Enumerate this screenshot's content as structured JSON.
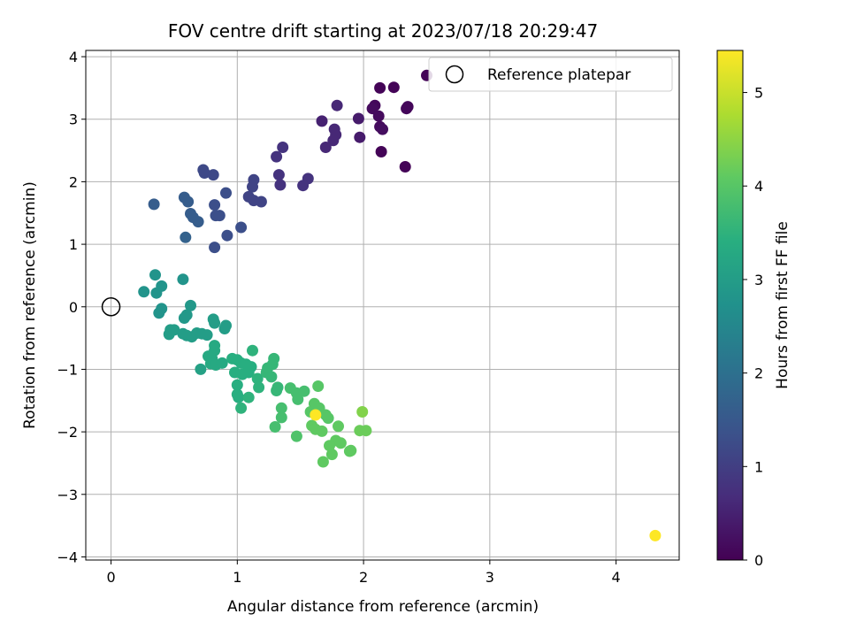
{
  "chart_data": {
    "type": "scatter",
    "title": "FOV centre drift starting at 2023/07/18 20:29:47",
    "xlabel": "Angular distance from reference (arcmin)",
    "ylabel": "Rotation from reference (arcmin)",
    "xlim": [
      -0.2,
      4.5
    ],
    "ylim": [
      -4.05,
      4.1
    ],
    "xticks": [
      0,
      1,
      2,
      3,
      4
    ],
    "yticks": [
      -4,
      -3,
      -2,
      -1,
      0,
      1,
      2,
      3,
      4
    ],
    "grid": true,
    "legend": {
      "position": "top-right",
      "label": "Reference platepar"
    },
    "reference_point": {
      "x": 0,
      "y": 0
    },
    "colormap": "viridis",
    "colorbar": {
      "label": "Hours from first FF file",
      "range": [
        0,
        5.45
      ],
      "ticks": [
        0,
        1,
        2,
        3,
        4,
        5
      ]
    },
    "points": [
      {
        "x": 2.5,
        "y": 3.7,
        "c": 0.05
      },
      {
        "x": 2.13,
        "y": 3.5,
        "c": 0.05
      },
      {
        "x": 2.24,
        "y": 3.51,
        "c": 0.05
      },
      {
        "x": 2.35,
        "y": 3.2,
        "c": 0.1
      },
      {
        "x": 2.34,
        "y": 3.17,
        "c": 0.1
      },
      {
        "x": 2.09,
        "y": 3.22,
        "c": 0.1
      },
      {
        "x": 2.07,
        "y": 3.17,
        "c": 0.15
      },
      {
        "x": 2.12,
        "y": 3.05,
        "c": 0.15
      },
      {
        "x": 2.13,
        "y": 2.88,
        "c": 0.15
      },
      {
        "x": 2.15,
        "y": 2.84,
        "c": 0.2
      },
      {
        "x": 2.14,
        "y": 2.48,
        "c": 0.05
      },
      {
        "x": 2.33,
        "y": 2.24,
        "c": 0.05
      },
      {
        "x": 1.96,
        "y": 3.01,
        "c": 0.4
      },
      {
        "x": 1.97,
        "y": 2.71,
        "c": 0.4
      },
      {
        "x": 1.67,
        "y": 2.97,
        "c": 0.5
      },
      {
        "x": 1.79,
        "y": 3.22,
        "c": 0.6
      },
      {
        "x": 1.77,
        "y": 2.84,
        "c": 0.6
      },
      {
        "x": 1.78,
        "y": 2.75,
        "c": 0.6
      },
      {
        "x": 1.76,
        "y": 2.66,
        "c": 0.6
      },
      {
        "x": 1.7,
        "y": 2.55,
        "c": 0.6
      },
      {
        "x": 1.36,
        "y": 2.55,
        "c": 0.8
      },
      {
        "x": 1.31,
        "y": 2.4,
        "c": 0.8
      },
      {
        "x": 1.33,
        "y": 2.11,
        "c": 0.8
      },
      {
        "x": 1.34,
        "y": 1.95,
        "c": 0.8
      },
      {
        "x": 1.56,
        "y": 2.05,
        "c": 0.8
      },
      {
        "x": 1.52,
        "y": 1.94,
        "c": 0.8
      },
      {
        "x": 1.13,
        "y": 2.03,
        "c": 1.1
      },
      {
        "x": 1.12,
        "y": 1.92,
        "c": 1.1
      },
      {
        "x": 1.09,
        "y": 1.76,
        "c": 1.1
      },
      {
        "x": 1.13,
        "y": 1.7,
        "c": 1.1
      },
      {
        "x": 1.19,
        "y": 1.68,
        "c": 1.1
      },
      {
        "x": 0.73,
        "y": 2.19,
        "c": 1.2
      },
      {
        "x": 0.74,
        "y": 2.14,
        "c": 1.2
      },
      {
        "x": 0.81,
        "y": 2.11,
        "c": 1.2
      },
      {
        "x": 0.91,
        "y": 1.82,
        "c": 1.3
      },
      {
        "x": 0.82,
        "y": 1.63,
        "c": 1.3
      },
      {
        "x": 0.83,
        "y": 1.46,
        "c": 1.3
      },
      {
        "x": 0.86,
        "y": 1.46,
        "c": 1.3
      },
      {
        "x": 0.92,
        "y": 1.14,
        "c": 1.3
      },
      {
        "x": 0.82,
        "y": 0.95,
        "c": 1.3
      },
      {
        "x": 1.03,
        "y": 1.27,
        "c": 1.3
      },
      {
        "x": 0.34,
        "y": 1.64,
        "c": 1.6
      },
      {
        "x": 0.58,
        "y": 1.75,
        "c": 1.6
      },
      {
        "x": 0.61,
        "y": 1.68,
        "c": 1.6
      },
      {
        "x": 0.63,
        "y": 1.49,
        "c": 1.6
      },
      {
        "x": 0.65,
        "y": 1.43,
        "c": 1.6
      },
      {
        "x": 0.69,
        "y": 1.36,
        "c": 1.6
      },
      {
        "x": 0.59,
        "y": 1.11,
        "c": 1.7
      },
      {
        "x": 0.35,
        "y": 0.51,
        "c": 2.8
      },
      {
        "x": 0.4,
        "y": 0.33,
        "c": 2.8
      },
      {
        "x": 0.26,
        "y": 0.24,
        "c": 2.8
      },
      {
        "x": 0.36,
        "y": 0.22,
        "c": 2.8
      },
      {
        "x": 0.57,
        "y": 0.44,
        "c": 2.8
      },
      {
        "x": 0.4,
        "y": -0.03,
        "c": 2.8
      },
      {
        "x": 0.38,
        "y": -0.1,
        "c": 2.8
      },
      {
        "x": 0.63,
        "y": 0.02,
        "c": 2.9
      },
      {
        "x": 0.6,
        "y": -0.13,
        "c": 2.9
      },
      {
        "x": 0.58,
        "y": -0.18,
        "c": 2.9
      },
      {
        "x": 0.81,
        "y": -0.2,
        "c": 3.0
      },
      {
        "x": 0.82,
        "y": -0.26,
        "c": 3.0
      },
      {
        "x": 0.91,
        "y": -0.3,
        "c": 3.0
      },
      {
        "x": 0.9,
        "y": -0.35,
        "c": 3.0
      },
      {
        "x": 0.47,
        "y": -0.37,
        "c": 3.0
      },
      {
        "x": 0.46,
        "y": -0.44,
        "c": 3.0
      },
      {
        "x": 0.5,
        "y": -0.37,
        "c": 3.0
      },
      {
        "x": 0.57,
        "y": -0.43,
        "c": 3.0
      },
      {
        "x": 0.6,
        "y": -0.46,
        "c": 3.0
      },
      {
        "x": 0.64,
        "y": -0.48,
        "c": 3.0
      },
      {
        "x": 0.68,
        "y": -0.42,
        "c": 3.0
      },
      {
        "x": 0.72,
        "y": -0.43,
        "c": 3.0
      },
      {
        "x": 0.76,
        "y": -0.45,
        "c": 3.0
      },
      {
        "x": 0.71,
        "y": -1.0,
        "c": 3.1
      },
      {
        "x": 0.82,
        "y": -0.62,
        "c": 3.3
      },
      {
        "x": 0.82,
        "y": -0.7,
        "c": 3.3
      },
      {
        "x": 0.77,
        "y": -0.79,
        "c": 3.3
      },
      {
        "x": 0.8,
        "y": -0.83,
        "c": 3.3
      },
      {
        "x": 0.79,
        "y": -0.91,
        "c": 3.3
      },
      {
        "x": 0.83,
        "y": -0.93,
        "c": 3.3
      },
      {
        "x": 0.88,
        "y": -0.9,
        "c": 3.3
      },
      {
        "x": 0.96,
        "y": -0.83,
        "c": 3.4
      },
      {
        "x": 1.0,
        "y": -0.85,
        "c": 3.4
      },
      {
        "x": 1.03,
        "y": -0.9,
        "c": 3.4
      },
      {
        "x": 1.07,
        "y": -0.92,
        "c": 3.4
      },
      {
        "x": 1.11,
        "y": -0.96,
        "c": 3.4
      },
      {
        "x": 0.98,
        "y": -1.05,
        "c": 3.4
      },
      {
        "x": 1.04,
        "y": -1.08,
        "c": 3.4
      },
      {
        "x": 1.09,
        "y": -1.05,
        "c": 3.4
      },
      {
        "x": 1.0,
        "y": -1.25,
        "c": 3.4
      },
      {
        "x": 1.0,
        "y": -1.4,
        "c": 3.4
      },
      {
        "x": 1.01,
        "y": -1.45,
        "c": 3.4
      },
      {
        "x": 1.03,
        "y": -1.62,
        "c": 3.5
      },
      {
        "x": 1.09,
        "y": -1.45,
        "c": 3.5
      },
      {
        "x": 1.12,
        "y": -0.7,
        "c": 3.5
      },
      {
        "x": 1.16,
        "y": -1.15,
        "c": 3.5
      },
      {
        "x": 1.17,
        "y": -1.29,
        "c": 3.5
      },
      {
        "x": 1.23,
        "y": -1.05,
        "c": 3.6
      },
      {
        "x": 1.24,
        "y": -0.98,
        "c": 3.6
      },
      {
        "x": 1.28,
        "y": -0.92,
        "c": 3.6
      },
      {
        "x": 1.29,
        "y": -0.83,
        "c": 3.6
      },
      {
        "x": 1.27,
        "y": -1.12,
        "c": 3.6
      },
      {
        "x": 1.32,
        "y": -1.29,
        "c": 3.6
      },
      {
        "x": 1.31,
        "y": -1.34,
        "c": 3.6
      },
      {
        "x": 1.42,
        "y": -1.3,
        "c": 3.8
      },
      {
        "x": 1.47,
        "y": -1.38,
        "c": 3.8
      },
      {
        "x": 1.48,
        "y": -1.48,
        "c": 3.8
      },
      {
        "x": 1.53,
        "y": -1.35,
        "c": 3.8
      },
      {
        "x": 1.35,
        "y": -1.62,
        "c": 3.8
      },
      {
        "x": 1.35,
        "y": -1.77,
        "c": 3.8
      },
      {
        "x": 1.3,
        "y": -1.92,
        "c": 3.8
      },
      {
        "x": 1.47,
        "y": -2.07,
        "c": 3.9
      },
      {
        "x": 1.64,
        "y": -1.27,
        "c": 4.0
      },
      {
        "x": 1.61,
        "y": -1.55,
        "c": 4.0
      },
      {
        "x": 1.65,
        "y": -1.62,
        "c": 4.0
      },
      {
        "x": 1.58,
        "y": -1.68,
        "c": 4.0
      },
      {
        "x": 1.7,
        "y": -1.73,
        "c": 4.0
      },
      {
        "x": 1.72,
        "y": -1.78,
        "c": 4.0
      },
      {
        "x": 1.59,
        "y": -1.9,
        "c": 4.1
      },
      {
        "x": 1.62,
        "y": -1.96,
        "c": 4.1
      },
      {
        "x": 1.67,
        "y": -1.99,
        "c": 4.1
      },
      {
        "x": 1.8,
        "y": -1.91,
        "c": 4.1
      },
      {
        "x": 1.78,
        "y": -2.14,
        "c": 4.1
      },
      {
        "x": 1.73,
        "y": -2.22,
        "c": 4.1
      },
      {
        "x": 1.75,
        "y": -2.36,
        "c": 4.1
      },
      {
        "x": 1.68,
        "y": -2.48,
        "c": 4.1
      },
      {
        "x": 1.82,
        "y": -2.18,
        "c": 4.1
      },
      {
        "x": 1.9,
        "y": -2.3,
        "c": 4.1
      },
      {
        "x": 1.89,
        "y": -2.31,
        "c": 4.1
      },
      {
        "x": 1.99,
        "y": -1.68,
        "c": 4.4
      },
      {
        "x": 1.97,
        "y": -1.98,
        "c": 4.2
      },
      {
        "x": 2.02,
        "y": -1.98,
        "c": 4.2
      },
      {
        "x": 1.62,
        "y": -1.73,
        "c": 5.45
      },
      {
        "x": 4.31,
        "y": -3.66,
        "c": 5.45
      }
    ]
  }
}
